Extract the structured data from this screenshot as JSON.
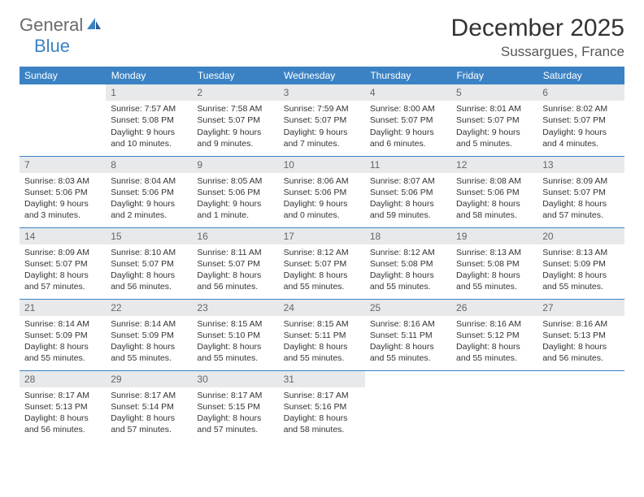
{
  "logo": {
    "part1": "General",
    "part2": "Blue"
  },
  "title": "December 2025",
  "location": "Sussargues, France",
  "colors": {
    "header_bg": "#3b82c4",
    "daynum_bg": "#e7e9eb",
    "rule": "#3b82c4",
    "logo_gray": "#6b6b6b",
    "logo_blue": "#3b82c4"
  },
  "weekdays": [
    "Sunday",
    "Monday",
    "Tuesday",
    "Wednesday",
    "Thursday",
    "Friday",
    "Saturday"
  ],
  "weeks": [
    [
      {
        "n": "",
        "sr": "",
        "ss": "",
        "dl": ""
      },
      {
        "n": "1",
        "sr": "Sunrise: 7:57 AM",
        "ss": "Sunset: 5:08 PM",
        "dl": "Daylight: 9 hours and 10 minutes."
      },
      {
        "n": "2",
        "sr": "Sunrise: 7:58 AM",
        "ss": "Sunset: 5:07 PM",
        "dl": "Daylight: 9 hours and 9 minutes."
      },
      {
        "n": "3",
        "sr": "Sunrise: 7:59 AM",
        "ss": "Sunset: 5:07 PM",
        "dl": "Daylight: 9 hours and 7 minutes."
      },
      {
        "n": "4",
        "sr": "Sunrise: 8:00 AM",
        "ss": "Sunset: 5:07 PM",
        "dl": "Daylight: 9 hours and 6 minutes."
      },
      {
        "n": "5",
        "sr": "Sunrise: 8:01 AM",
        "ss": "Sunset: 5:07 PM",
        "dl": "Daylight: 9 hours and 5 minutes."
      },
      {
        "n": "6",
        "sr": "Sunrise: 8:02 AM",
        "ss": "Sunset: 5:07 PM",
        "dl": "Daylight: 9 hours and 4 minutes."
      }
    ],
    [
      {
        "n": "7",
        "sr": "Sunrise: 8:03 AM",
        "ss": "Sunset: 5:06 PM",
        "dl": "Daylight: 9 hours and 3 minutes."
      },
      {
        "n": "8",
        "sr": "Sunrise: 8:04 AM",
        "ss": "Sunset: 5:06 PM",
        "dl": "Daylight: 9 hours and 2 minutes."
      },
      {
        "n": "9",
        "sr": "Sunrise: 8:05 AM",
        "ss": "Sunset: 5:06 PM",
        "dl": "Daylight: 9 hours and 1 minute."
      },
      {
        "n": "10",
        "sr": "Sunrise: 8:06 AM",
        "ss": "Sunset: 5:06 PM",
        "dl": "Daylight: 9 hours and 0 minutes."
      },
      {
        "n": "11",
        "sr": "Sunrise: 8:07 AM",
        "ss": "Sunset: 5:06 PM",
        "dl": "Daylight: 8 hours and 59 minutes."
      },
      {
        "n": "12",
        "sr": "Sunrise: 8:08 AM",
        "ss": "Sunset: 5:06 PM",
        "dl": "Daylight: 8 hours and 58 minutes."
      },
      {
        "n": "13",
        "sr": "Sunrise: 8:09 AM",
        "ss": "Sunset: 5:07 PM",
        "dl": "Daylight: 8 hours and 57 minutes."
      }
    ],
    [
      {
        "n": "14",
        "sr": "Sunrise: 8:09 AM",
        "ss": "Sunset: 5:07 PM",
        "dl": "Daylight: 8 hours and 57 minutes."
      },
      {
        "n": "15",
        "sr": "Sunrise: 8:10 AM",
        "ss": "Sunset: 5:07 PM",
        "dl": "Daylight: 8 hours and 56 minutes."
      },
      {
        "n": "16",
        "sr": "Sunrise: 8:11 AM",
        "ss": "Sunset: 5:07 PM",
        "dl": "Daylight: 8 hours and 56 minutes."
      },
      {
        "n": "17",
        "sr": "Sunrise: 8:12 AM",
        "ss": "Sunset: 5:07 PM",
        "dl": "Daylight: 8 hours and 55 minutes."
      },
      {
        "n": "18",
        "sr": "Sunrise: 8:12 AM",
        "ss": "Sunset: 5:08 PM",
        "dl": "Daylight: 8 hours and 55 minutes."
      },
      {
        "n": "19",
        "sr": "Sunrise: 8:13 AM",
        "ss": "Sunset: 5:08 PM",
        "dl": "Daylight: 8 hours and 55 minutes."
      },
      {
        "n": "20",
        "sr": "Sunrise: 8:13 AM",
        "ss": "Sunset: 5:09 PM",
        "dl": "Daylight: 8 hours and 55 minutes."
      }
    ],
    [
      {
        "n": "21",
        "sr": "Sunrise: 8:14 AM",
        "ss": "Sunset: 5:09 PM",
        "dl": "Daylight: 8 hours and 55 minutes."
      },
      {
        "n": "22",
        "sr": "Sunrise: 8:14 AM",
        "ss": "Sunset: 5:09 PM",
        "dl": "Daylight: 8 hours and 55 minutes."
      },
      {
        "n": "23",
        "sr": "Sunrise: 8:15 AM",
        "ss": "Sunset: 5:10 PM",
        "dl": "Daylight: 8 hours and 55 minutes."
      },
      {
        "n": "24",
        "sr": "Sunrise: 8:15 AM",
        "ss": "Sunset: 5:11 PM",
        "dl": "Daylight: 8 hours and 55 minutes."
      },
      {
        "n": "25",
        "sr": "Sunrise: 8:16 AM",
        "ss": "Sunset: 5:11 PM",
        "dl": "Daylight: 8 hours and 55 minutes."
      },
      {
        "n": "26",
        "sr": "Sunrise: 8:16 AM",
        "ss": "Sunset: 5:12 PM",
        "dl": "Daylight: 8 hours and 55 minutes."
      },
      {
        "n": "27",
        "sr": "Sunrise: 8:16 AM",
        "ss": "Sunset: 5:13 PM",
        "dl": "Daylight: 8 hours and 56 minutes."
      }
    ],
    [
      {
        "n": "28",
        "sr": "Sunrise: 8:17 AM",
        "ss": "Sunset: 5:13 PM",
        "dl": "Daylight: 8 hours and 56 minutes."
      },
      {
        "n": "29",
        "sr": "Sunrise: 8:17 AM",
        "ss": "Sunset: 5:14 PM",
        "dl": "Daylight: 8 hours and 57 minutes."
      },
      {
        "n": "30",
        "sr": "Sunrise: 8:17 AM",
        "ss": "Sunset: 5:15 PM",
        "dl": "Daylight: 8 hours and 57 minutes."
      },
      {
        "n": "31",
        "sr": "Sunrise: 8:17 AM",
        "ss": "Sunset: 5:16 PM",
        "dl": "Daylight: 8 hours and 58 minutes."
      },
      {
        "n": "",
        "sr": "",
        "ss": "",
        "dl": ""
      },
      {
        "n": "",
        "sr": "",
        "ss": "",
        "dl": ""
      },
      {
        "n": "",
        "sr": "",
        "ss": "",
        "dl": ""
      }
    ]
  ]
}
